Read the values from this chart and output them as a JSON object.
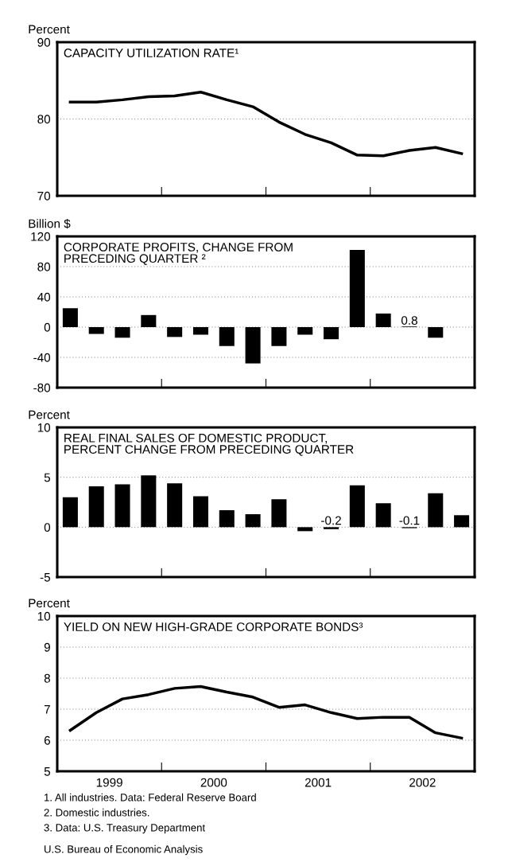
{
  "chart_data": [
    {
      "type": "line",
      "title": "CAPACITY UTILIZATION RATE¹",
      "ylabel": "Percent",
      "x": [
        1999.125,
        1999.375,
        1999.625,
        1999.875,
        2000.125,
        2000.375,
        2000.625,
        2000.875,
        2001.125,
        2001.375,
        2001.625,
        2001.875,
        2002.125,
        2002.375,
        2002.625,
        2002.875
      ],
      "series": [
        {
          "color": "#000000",
          "values": [
            82.2,
            82.2,
            82.5,
            82.9,
            83.0,
            83.5,
            82.5,
            81.6,
            79.6,
            78.0,
            76.9,
            75.3,
            75.2,
            75.9,
            76.3,
            75.5
          ]
        }
      ],
      "xlim": [
        1999,
        2003
      ],
      "xticks": [
        {
          "value": 2000,
          "label": null
        },
        {
          "value": 2001,
          "label": null
        },
        {
          "value": 2002,
          "label": null
        }
      ],
      "ylim": [
        70,
        90
      ],
      "yticks": [
        70,
        80,
        90
      ],
      "grid": "y",
      "tick_labels": "y",
      "line_style": "solid",
      "marker": "none"
    },
    {
      "type": "bar",
      "title": "CORPORATE PROFITS, CHANGE FROM\nPRECEDING QUARTER ²",
      "ylabel": "Billion $",
      "series": [
        {
          "color": "#000000",
          "x": [
            1999.125,
            1999.375,
            1999.625,
            1999.875,
            2000.125,
            2000.375,
            2000.625,
            2000.875,
            2001.125,
            2001.375,
            2001.625,
            2001.875,
            2002.125,
            2002.375,
            2002.625
          ],
          "values": [
            25,
            -9,
            -14,
            16,
            -13,
            -10,
            -25,
            -48,
            -25,
            -10,
            -16,
            102,
            18,
            0.8,
            -14
          ]
        }
      ],
      "value_labels": [
        null,
        null,
        null,
        null,
        null,
        null,
        null,
        null,
        null,
        null,
        null,
        null,
        null,
        "0.8",
        null
      ],
      "xlim": [
        1999,
        2003
      ],
      "xticks": [
        {
          "value": 2000,
          "label": null
        },
        {
          "value": 2001,
          "label": null
        },
        {
          "value": 2002,
          "label": null
        }
      ],
      "ylim": [
        -80,
        120
      ],
      "yticks": [
        -80,
        -40,
        0,
        40,
        80,
        120
      ],
      "grid": "y",
      "tick_labels": "y"
    },
    {
      "type": "bar",
      "title": "REAL FINAL SALES OF DOMESTIC PRODUCT,\nPERCENT CHANGE FROM PRECEDING QUARTER",
      "ylabel": "Percent",
      "x": [
        1999.125,
        1999.375,
        1999.625,
        1999.875,
        2000.125,
        2000.375,
        2000.625,
        2000.875,
        2001.125,
        2001.375,
        2001.625,
        2001.875,
        2002.125,
        2002.375,
        2002.625,
        2002.875
      ],
      "series": [
        {
          "color": "#000000",
          "values": [
            3.0,
            4.1,
            4.3,
            5.2,
            4.4,
            3.1,
            1.7,
            1.3,
            2.8,
            -0.4,
            -0.2,
            4.2,
            2.4,
            -0.1,
            3.4,
            1.2
          ]
        }
      ],
      "value_labels": [
        null,
        null,
        null,
        null,
        null,
        null,
        null,
        null,
        null,
        null,
        "-0.2",
        null,
        null,
        "-0.1",
        null,
        null
      ],
      "xlim": [
        1999,
        2003
      ],
      "xticks": [
        {
          "value": 2000,
          "label": null
        },
        {
          "value": 2001,
          "label": null
        },
        {
          "value": 2002,
          "label": null
        }
      ],
      "ylim": [
        -5,
        10
      ],
      "yticks": [
        -5,
        0,
        5,
        10
      ],
      "grid": "y",
      "tick_labels": "y"
    },
    {
      "type": "line",
      "title": "YIELD ON NEW HIGH-GRADE CORPORATE BONDS³",
      "ylabel": "Percent",
      "x": [
        1999.125,
        1999.375,
        1999.625,
        1999.875,
        2000.125,
        2000.375,
        2000.625,
        2000.875,
        2001.125,
        2001.375,
        2001.625,
        2001.875,
        2002.125,
        2002.375,
        2002.625,
        2002.875
      ],
      "series": [
        {
          "color": "#000000",
          "values": [
            6.32,
            6.89,
            7.33,
            7.47,
            7.67,
            7.73,
            7.55,
            7.39,
            7.06,
            7.14,
            6.89,
            6.7,
            6.74,
            6.74,
            6.24,
            6.07
          ]
        }
      ],
      "xlim": [
        1999,
        2003
      ],
      "xticks": [
        {
          "value": 1999.5,
          "label": "1999"
        },
        {
          "value": 2000,
          "label": null
        },
        {
          "value": 2000.5,
          "label": "2000"
        },
        {
          "value": 2001,
          "label": null
        },
        {
          "value": 2001.5,
          "label": "2001"
        },
        {
          "value": 2002,
          "label": null
        },
        {
          "value": 2002.5,
          "label": "2002"
        }
      ],
      "ylim": [
        5,
        10
      ],
      "yticks": [
        5,
        6,
        7,
        8,
        9,
        10
      ],
      "grid": "y",
      "line_style": "solid",
      "marker": "none",
      "annotations": [
        "1. All industries. Data: Federal Reserve Board",
        "2. Domestic industries.",
        "3. Data: U.S. Treasury Department",
        "U.S. Bureau of Economic Analysis"
      ]
    }
  ]
}
